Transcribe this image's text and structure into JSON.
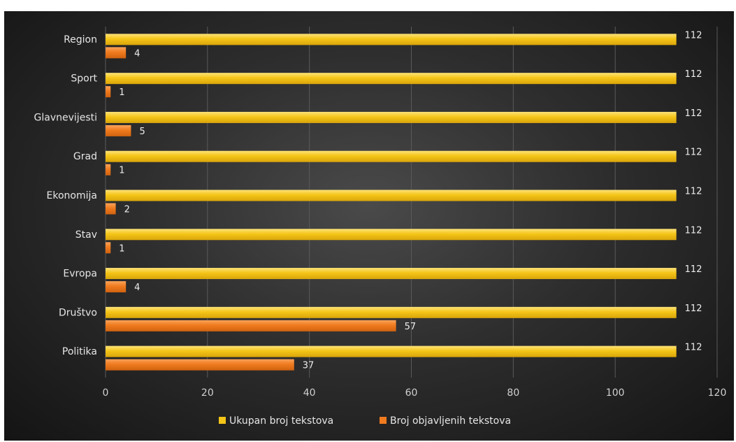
{
  "chart_data": {
    "type": "bar",
    "orientation": "horizontal",
    "categories": [
      "Region",
      "Sport",
      "Glavnevijesti",
      "Grad",
      "Ekonomija",
      "Stav",
      "Evropa",
      "Društvo",
      "Politika"
    ],
    "series": [
      {
        "name": "Ukupan broj tekstova",
        "values": [
          112,
          112,
          112,
          112,
          112,
          112,
          112,
          112,
          112
        ],
        "color": "#f5c518"
      },
      {
        "name": "Broj objavljenih tekstova",
        "values": [
          4,
          1,
          5,
          1,
          2,
          1,
          4,
          57,
          37
        ],
        "color": "#f07b1f"
      }
    ],
    "xlim": [
      0,
      120
    ],
    "xticks": [
      0,
      20,
      40,
      60,
      80,
      100,
      120
    ],
    "grid": "vertical",
    "legend": "bottom-center",
    "background": "#2e2e2e"
  }
}
